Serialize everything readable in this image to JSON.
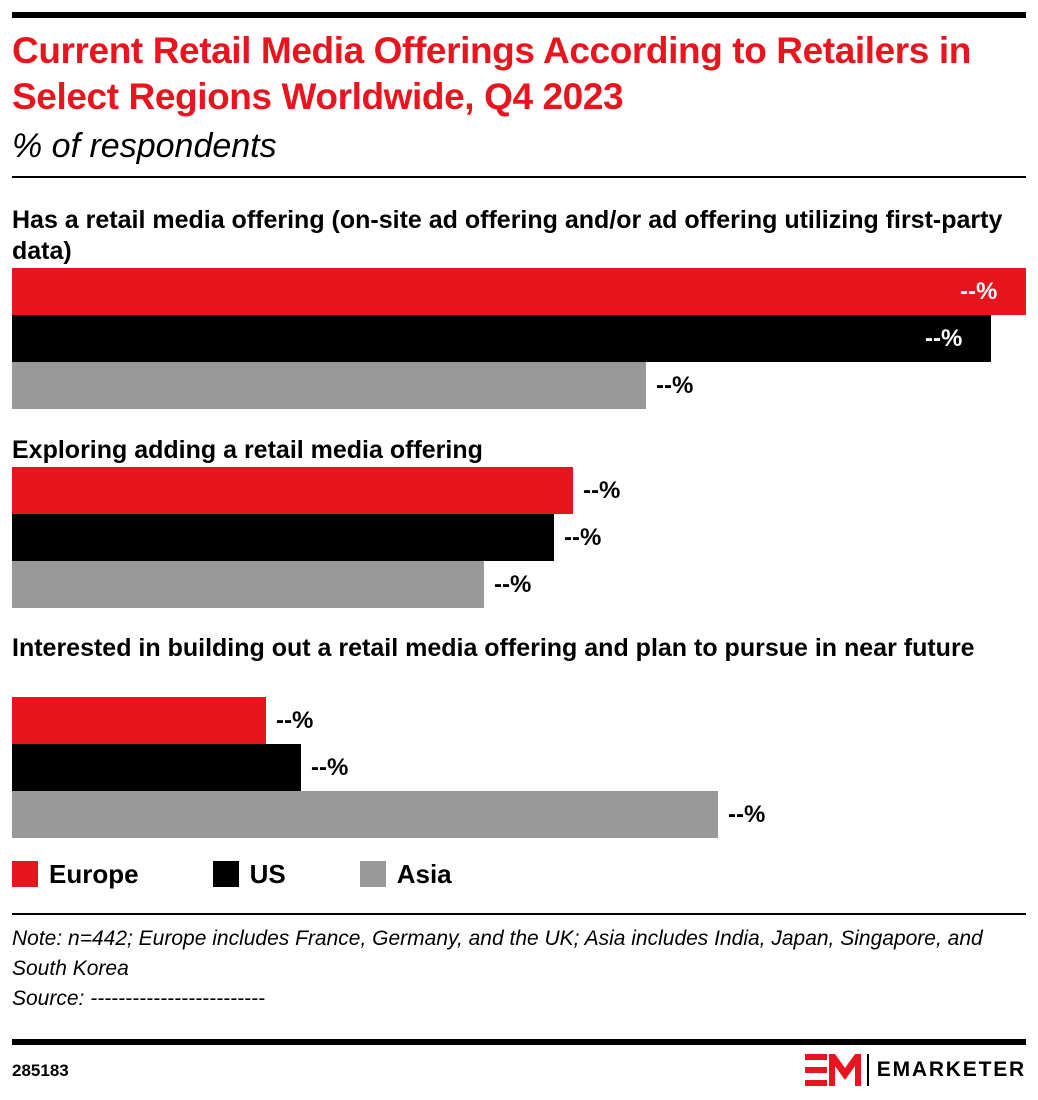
{
  "header": {
    "title": "Current Retail Media Offerings According to Retailers in Select Regions Worldwide, Q4 2023",
    "subtitle": "% of respondents"
  },
  "colors": {
    "Europe": "#e8141e",
    "US": "#000000",
    "Asia": "#999999",
    "accent": "#e8141e"
  },
  "chart_data": {
    "type": "bar",
    "orientation": "horizontal",
    "title": "Current Retail Media Offerings According to Retailers in Select Regions Worldwide, Q4 2023",
    "subtitle": "% of respondents",
    "categories": [
      "Has a retail media offering (on-site ad offering and/or ad offering utilizing first-party data)",
      "Exploring adding a retail media offering",
      "Interested in building out a retail media offering and plan to pursue in near future"
    ],
    "series": [
      {
        "name": "Europe",
        "values": [
          100,
          55.3,
          25
        ],
        "labels": [
          "--%",
          "--%",
          "--%"
        ]
      },
      {
        "name": "US",
        "values": [
          96.5,
          53.5,
          28.5
        ],
        "labels": [
          "--%",
          "--%",
          "--%"
        ]
      },
      {
        "name": "Asia",
        "values": [
          62.5,
          46.5,
          69.6
        ],
        "labels": [
          "--%",
          "--%",
          "--%"
        ]
      }
    ],
    "xlim": [
      0,
      100
    ],
    "grid": false,
    "legend": "bottom-left"
  },
  "legend": {
    "items": [
      "Europe",
      "US",
      "Asia"
    ]
  },
  "footer": {
    "note_line1": "Note: n=442; Europe includes France, Germany, and the UK; Asia includes India, Japan, Singapore, and South Korea",
    "source": "Source: -------------------------",
    "chart_id": "285183",
    "brand": "EMARKETER"
  }
}
